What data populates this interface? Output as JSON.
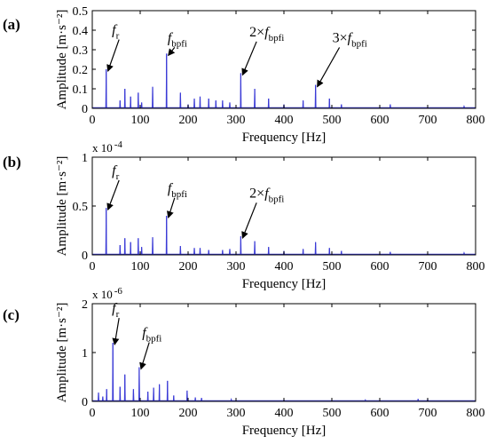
{
  "figure": {
    "title": ""
  },
  "chart_data": [
    {
      "panel_label": "(a)",
      "type": "line",
      "xlabel": "Frequency [Hz]",
      "ylabel": "Amplitude [m·s⁻²]",
      "exponent_label": "",
      "xlim": [
        0,
        800
      ],
      "ylim": [
        0,
        0.5
      ],
      "xticks": [
        "0",
        "100",
        "200",
        "300",
        "400",
        "500",
        "600",
        "700",
        "800"
      ],
      "yticks": [
        "0",
        "0.1",
        "0.2",
        "0.3",
        "0.4",
        "0.5"
      ],
      "line_color": "#3b3bd6",
      "peaks": [
        {
          "x": 29,
          "y": 0.2
        },
        {
          "x": 58,
          "y": 0.04
        },
        {
          "x": 68,
          "y": 0.1
        },
        {
          "x": 80,
          "y": 0.06
        },
        {
          "x": 96,
          "y": 0.08
        },
        {
          "x": 103,
          "y": 0.03
        },
        {
          "x": 126,
          "y": 0.11
        },
        {
          "x": 155,
          "y": 0.28
        },
        {
          "x": 184,
          "y": 0.08
        },
        {
          "x": 200,
          "y": 0.02
        },
        {
          "x": 213,
          "y": 0.05
        },
        {
          "x": 225,
          "y": 0.06
        },
        {
          "x": 243,
          "y": 0.05
        },
        {
          "x": 258,
          "y": 0.04
        },
        {
          "x": 272,
          "y": 0.04
        },
        {
          "x": 287,
          "y": 0.03
        },
        {
          "x": 310,
          "y": 0.18
        },
        {
          "x": 339,
          "y": 0.1
        },
        {
          "x": 368,
          "y": 0.05
        },
        {
          "x": 400,
          "y": 0.02
        },
        {
          "x": 440,
          "y": 0.04
        },
        {
          "x": 466,
          "y": 0.12
        },
        {
          "x": 495,
          "y": 0.05
        },
        {
          "x": 520,
          "y": 0.02
        },
        {
          "x": 622,
          "y": 0.02
        },
        {
          "x": 776,
          "y": 0.01
        }
      ],
      "annotations": [
        {
          "label": "f",
          "sub": "r",
          "x": 29,
          "y": 0.2,
          "tx": 67,
          "ty": 0.37
        },
        {
          "label": "f",
          "sub": "bpfi",
          "x": 155,
          "y": 0.28,
          "tx": 183,
          "ty": 0.33
        },
        {
          "label": "2×f",
          "sub": "bpfi",
          "x": 310,
          "y": 0.18,
          "tx": 354,
          "ty": 0.36
        },
        {
          "label": "3×f",
          "sub": "bpfi",
          "x": 466,
          "y": 0.12,
          "tx": 527,
          "ty": 0.33
        }
      ]
    },
    {
      "panel_label": "(b)",
      "type": "line",
      "xlabel": "Frequency [Hz]",
      "ylabel": "Amplitude [m·s⁻²]",
      "exponent_label": "x 10",
      "exponent_power": "-4",
      "xlim": [
        0,
        800
      ],
      "ylim": [
        0,
        1
      ],
      "xticks": [
        "0",
        "100",
        "200",
        "300",
        "400",
        "500",
        "600",
        "700",
        "800"
      ],
      "yticks": [
        "0",
        "0.5",
        "1"
      ],
      "line_color": "#3b3bd6",
      "peaks": [
        {
          "x": 29,
          "y": 0.48
        },
        {
          "x": 58,
          "y": 0.1
        },
        {
          "x": 68,
          "y": 0.17
        },
        {
          "x": 80,
          "y": 0.13
        },
        {
          "x": 96,
          "y": 0.17
        },
        {
          "x": 103,
          "y": 0.08
        },
        {
          "x": 126,
          "y": 0.18
        },
        {
          "x": 155,
          "y": 0.4
        },
        {
          "x": 184,
          "y": 0.09
        },
        {
          "x": 213,
          "y": 0.07
        },
        {
          "x": 225,
          "y": 0.07
        },
        {
          "x": 243,
          "y": 0.05
        },
        {
          "x": 272,
          "y": 0.05
        },
        {
          "x": 287,
          "y": 0.06
        },
        {
          "x": 310,
          "y": 0.19
        },
        {
          "x": 339,
          "y": 0.14
        },
        {
          "x": 368,
          "y": 0.08
        },
        {
          "x": 400,
          "y": 0.04
        },
        {
          "x": 440,
          "y": 0.06
        },
        {
          "x": 466,
          "y": 0.13
        },
        {
          "x": 495,
          "y": 0.07
        },
        {
          "x": 520,
          "y": 0.04
        },
        {
          "x": 622,
          "y": 0.03
        },
        {
          "x": 776,
          "y": 0.02
        }
      ],
      "annotations": [
        {
          "label": "f",
          "sub": "r",
          "x": 29,
          "y": 0.48,
          "tx": 67,
          "ty": 0.8
        },
        {
          "label": "f",
          "sub": "bpfi",
          "x": 155,
          "y": 0.4,
          "tx": 183,
          "ty": 0.62
        },
        {
          "label": "2×f",
          "sub": "bpfi",
          "x": 310,
          "y": 0.19,
          "tx": 354,
          "ty": 0.57
        }
      ]
    },
    {
      "panel_label": "(c)",
      "type": "line",
      "xlabel": "Frequency [Hz]",
      "ylabel": "Amplitude [m·s⁻²]",
      "exponent_label": "x 10",
      "exponent_power": "-6",
      "xlim": [
        0,
        800
      ],
      "ylim": [
        0,
        2
      ],
      "xticks": [
        "0",
        "100",
        "200",
        "300",
        "400",
        "500",
        "600",
        "700",
        "800"
      ],
      "yticks": [
        "0",
        "1",
        "2"
      ],
      "line_color": "#3b3bd6",
      "peaks": [
        {
          "x": 13,
          "y": 0.18
        },
        {
          "x": 22,
          "y": 0.1
        },
        {
          "x": 30,
          "y": 0.25
        },
        {
          "x": 43,
          "y": 1.2
        },
        {
          "x": 58,
          "y": 0.3
        },
        {
          "x": 68,
          "y": 0.55
        },
        {
          "x": 86,
          "y": 0.25
        },
        {
          "x": 98,
          "y": 0.7
        },
        {
          "x": 116,
          "y": 0.2
        },
        {
          "x": 128,
          "y": 0.28
        },
        {
          "x": 140,
          "y": 0.35
        },
        {
          "x": 157,
          "y": 0.42
        },
        {
          "x": 170,
          "y": 0.12
        },
        {
          "x": 198,
          "y": 0.22
        },
        {
          "x": 215,
          "y": 0.08
        },
        {
          "x": 228,
          "y": 0.07
        },
        {
          "x": 290,
          "y": 0.04
        },
        {
          "x": 400,
          "y": 0.03
        },
        {
          "x": 570,
          "y": 0.03
        },
        {
          "x": 680,
          "y": 0.05
        },
        {
          "x": 700,
          "y": 0.04
        }
      ],
      "annotations": [
        {
          "label": "f",
          "sub": "r",
          "x": 43,
          "y": 1.2,
          "tx": 67,
          "ty": 1.78
        },
        {
          "label": "f",
          "sub": "bpfi",
          "x": 98,
          "y": 0.7,
          "tx": 130,
          "ty": 1.28
        }
      ]
    }
  ]
}
